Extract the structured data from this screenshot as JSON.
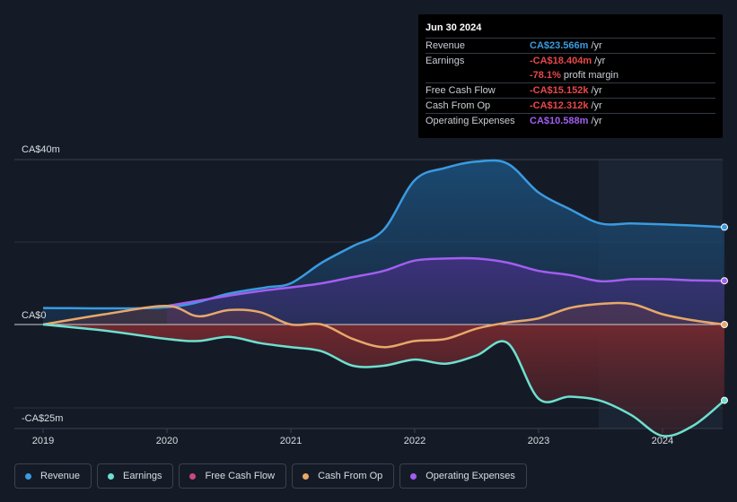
{
  "tooltip": {
    "date": "Jun 30 2024",
    "rows": [
      {
        "label": "Revenue",
        "value": "CA$23.566m",
        "unit": "/yr",
        "color": "#3a9be0"
      },
      {
        "label": "Earnings",
        "value": "-CA$18.404m",
        "unit": "/yr",
        "color": "#e8484a"
      },
      {
        "label": "",
        "value": "-78.1%",
        "unit": "profit margin",
        "color": "#e8484a"
      },
      {
        "label": "Free Cash Flow",
        "value": "-CA$15.152k",
        "unit": "/yr",
        "color": "#e8484a"
      },
      {
        "label": "Cash From Op",
        "value": "-CA$12.312k",
        "unit": "/yr",
        "color": "#e8484a"
      },
      {
        "label": "Operating Expenses",
        "value": "CA$10.588m",
        "unit": "/yr",
        "color": "#a25ef0"
      }
    ]
  },
  "legend": [
    {
      "label": "Revenue",
      "color": "#3a9be0"
    },
    {
      "label": "Earnings",
      "color": "#6de0cf"
    },
    {
      "label": "Free Cash Flow",
      "color": "#c84a7c"
    },
    {
      "label": "Cash From Op",
      "color": "#e8a86a"
    },
    {
      "label": "Operating Expenses",
      "color": "#a25ef0"
    }
  ],
  "chart_data": {
    "type": "area",
    "title": "",
    "units": "CA$m",
    "ylim": [
      -25,
      40
    ],
    "y_labels": [
      {
        "text": "CA$40m",
        "value": 40
      },
      {
        "text": "CA$0",
        "value": 0
      },
      {
        "text": "-CA$25m",
        "value": -25
      }
    ],
    "x_ticks": [
      "2019",
      "2020",
      "2021",
      "2022",
      "2023",
      "2024"
    ],
    "x_range": [
      2018.75,
      2024.5
    ],
    "forecast_start": 2023.5,
    "series": [
      {
        "name": "Revenue",
        "color": "#3a9be0",
        "x": [
          2019.0,
          2020.0,
          2020.5,
          2020.8,
          2021.0,
          2021.25,
          2021.5,
          2021.75,
          2022.0,
          2022.25,
          2022.5,
          2022.75,
          2023.0,
          2023.25,
          2023.5,
          2023.75,
          2024.0,
          2024.25,
          2024.5
        ],
        "y": [
          4.0,
          4.2,
          7.5,
          9.0,
          10.0,
          15.0,
          19.0,
          23.0,
          35.0,
          38.0,
          39.5,
          39.0,
          32.0,
          28.0,
          24.5,
          24.5,
          24.3,
          24.0,
          23.6
        ]
      },
      {
        "name": "Operating Expenses",
        "color": "#a25ef0",
        "x": [
          2020.0,
          2020.5,
          2020.8,
          2021.0,
          2021.25,
          2021.5,
          2021.75,
          2022.0,
          2022.25,
          2022.5,
          2022.75,
          2023.0,
          2023.25,
          2023.5,
          2023.75,
          2024.0,
          2024.25,
          2024.5
        ],
        "y": [
          4.5,
          7.0,
          8.3,
          9.0,
          10.0,
          11.5,
          13.0,
          15.5,
          16.0,
          16.0,
          15.0,
          13.0,
          12.0,
          10.5,
          11.0,
          11.0,
          10.7,
          10.6
        ]
      },
      {
        "name": "Cash From Op",
        "color": "#e8a86a",
        "x": [
          2019.0,
          2019.5,
          2020.0,
          2020.25,
          2020.5,
          2020.75,
          2021.0,
          2021.25,
          2021.5,
          2021.75,
          2022.0,
          2022.25,
          2022.5,
          2022.75,
          2023.0,
          2023.25,
          2023.5,
          2023.75,
          2024.0,
          2024.25,
          2024.5
        ],
        "y": [
          0.0,
          2.5,
          4.5,
          2.0,
          3.5,
          3.0,
          0.0,
          0.0,
          -3.5,
          -5.5,
          -4.0,
          -3.5,
          -1.0,
          0.5,
          1.5,
          4.0,
          5.0,
          5.0,
          2.5,
          1.0,
          -0.01
        ]
      },
      {
        "name": "Earnings",
        "color": "#6de0cf",
        "x": [
          2019.0,
          2019.5,
          2020.0,
          2020.25,
          2020.5,
          2020.75,
          2021.0,
          2021.25,
          2021.5,
          2021.75,
          2022.0,
          2022.25,
          2022.5,
          2022.75,
          2023.0,
          2023.25,
          2023.5,
          2023.75,
          2024.0,
          2024.25,
          2024.5
        ],
        "y": [
          0.0,
          -1.5,
          -3.5,
          -4.0,
          -3.0,
          -4.5,
          -5.5,
          -6.5,
          -10.0,
          -10.0,
          -8.5,
          -9.5,
          -7.5,
          -4.5,
          -18.0,
          -17.5,
          -18.5,
          -22.0,
          -27.0,
          -24.5,
          -18.4
        ]
      }
    ]
  }
}
